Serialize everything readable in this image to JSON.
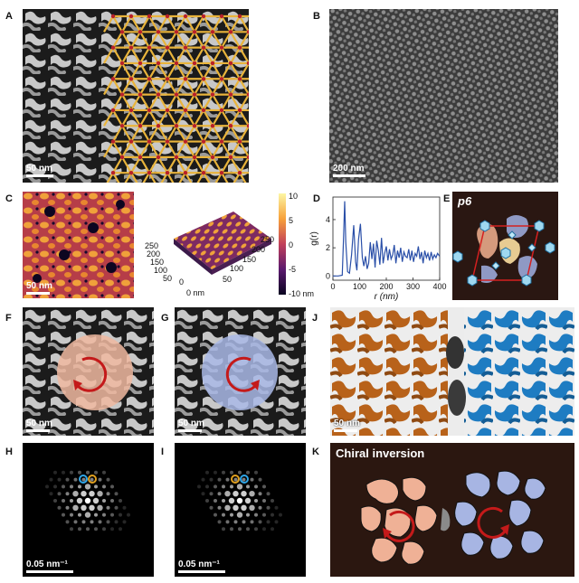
{
  "labels": {
    "A": "A",
    "B": "B",
    "C": "C",
    "D": "D",
    "E": "E",
    "F": "F",
    "G": "G",
    "H": "H",
    "I": "I",
    "J": "J",
    "K": "K"
  },
  "scalebars": {
    "A": "50 nm",
    "B": "200 nm",
    "C": "50 nm",
    "F": "50 nm",
    "G": "50 nm",
    "J": "50 nm",
    "H": "0.05 nm⁻¹",
    "I": "0.05 nm⁻¹"
  },
  "colorbar": {
    "ticks": [
      "10",
      "5",
      "0",
      "-5",
      "-10 nm"
    ]
  },
  "surface3d": {
    "y_ticks": [
      "250",
      "200",
      "150",
      "100",
      "50",
      "0"
    ],
    "x_ticks": [
      "0 nm",
      "50",
      "100",
      "150",
      "200",
      "250"
    ]
  },
  "panelE": {
    "title": "p6"
  },
  "panelK": {
    "title": "Chiral inversion"
  },
  "chart_data": {
    "type": "line",
    "xlabel": "r (nm)",
    "ylabel": "g(r)",
    "xticks": [
      0,
      100,
      200,
      300,
      400
    ],
    "yticks": [
      0,
      2,
      4
    ],
    "xlim": [
      0,
      400
    ],
    "ylim": [
      -0.3,
      5.6
    ],
    "series": [
      {
        "color": "#2a4fa8",
        "x": [
          0,
          20,
          35,
          40,
          44,
          48,
          55,
          62,
          70,
          78,
          85,
          90,
          96,
          103,
          110,
          116,
          122,
          128,
          134,
          140,
          146,
          152,
          158,
          164,
          170,
          176,
          182,
          188,
          194,
          200,
          206,
          212,
          218,
          224,
          230,
          236,
          242,
          248,
          254,
          260,
          266,
          272,
          278,
          284,
          290,
          296,
          302,
          308,
          314,
          320,
          326,
          332,
          338,
          344,
          350,
          356,
          362,
          368,
          374,
          380,
          386,
          392,
          400
        ],
        "y": [
          0,
          0,
          0.05,
          2.8,
          5.3,
          2.4,
          0.3,
          0.2,
          1.5,
          3.6,
          1.0,
          0.4,
          2.6,
          3.7,
          1.3,
          0.7,
          1.4,
          0.5,
          0.9,
          2.4,
          1.2,
          2.3,
          0.6,
          2.5,
          1.8,
          0.8,
          2.7,
          0.9,
          1.6,
          2.1,
          1.1,
          1.9,
          1.2,
          1.5,
          2.2,
          0.9,
          1.8,
          1.3,
          2.0,
          1.0,
          1.7,
          1.4,
          1.3,
          1.9,
          1.1,
          1.8,
          1.0,
          1.6,
          1.4,
          2.1,
          1.2,
          1.7,
          0.9,
          1.8,
          1.3,
          1.6,
          1.1,
          1.7,
          1.2,
          1.5,
          1.3,
          1.6,
          1.4
        ]
      }
    ]
  }
}
